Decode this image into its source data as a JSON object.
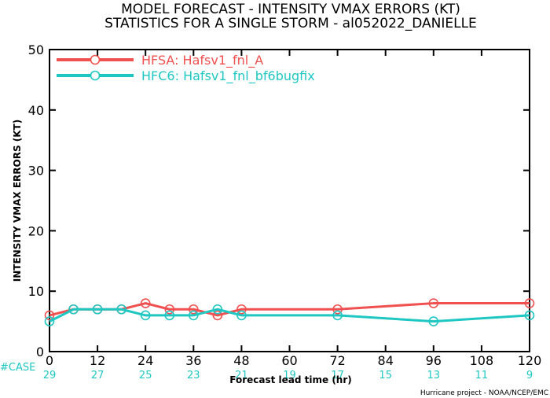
{
  "titles": {
    "line1": "MODEL FORECAST - INTENSITY VMAX ERRORS (KT)",
    "line2": "STATISTICS FOR A SINGLE STORM - al052022_DANIELLE"
  },
  "credit": "Hurricane project - NOAA/NCEP/EMC",
  "cases_label": "#CASE",
  "chart_data": {
    "type": "line",
    "xlabel": "Forecast lead time (hr)",
    "ylabel": "INTENSITY VMAX ERRORS (KT)",
    "xlim": [
      0,
      120
    ],
    "ylim": [
      0,
      50
    ],
    "xticks": [
      0,
      12,
      24,
      36,
      48,
      60,
      72,
      84,
      96,
      108,
      120
    ],
    "yticks": [
      0,
      10,
      20,
      30,
      40,
      50
    ],
    "grid": false,
    "legend_position": "top-left",
    "cases": {
      "x": [
        0,
        12,
        24,
        36,
        48,
        60,
        72,
        84,
        96,
        108,
        120
      ],
      "values": [
        "29",
        "27",
        "25",
        "23",
        "21",
        "19",
        "17",
        "15",
        "13",
        "11",
        "9"
      ]
    },
    "series": [
      {
        "name": "HFSA: Hafsv1_fnl_A",
        "color": "#f05050",
        "x": [
          0,
          6,
          12,
          18,
          24,
          30,
          36,
          42,
          48,
          72,
          96,
          120
        ],
        "y": [
          6,
          7,
          7,
          7,
          8,
          7,
          7,
          6,
          7,
          7,
          8,
          8
        ]
      },
      {
        "name": "HFC6: Hafsv1_fnl_bf6bugfix",
        "color": "#1fc7c2",
        "x": [
          0,
          6,
          12,
          18,
          24,
          30,
          36,
          42,
          48,
          72,
          96,
          120
        ],
        "y": [
          5,
          7,
          7,
          7,
          6,
          6,
          6,
          7,
          6,
          6,
          5,
          6
        ]
      }
    ]
  }
}
